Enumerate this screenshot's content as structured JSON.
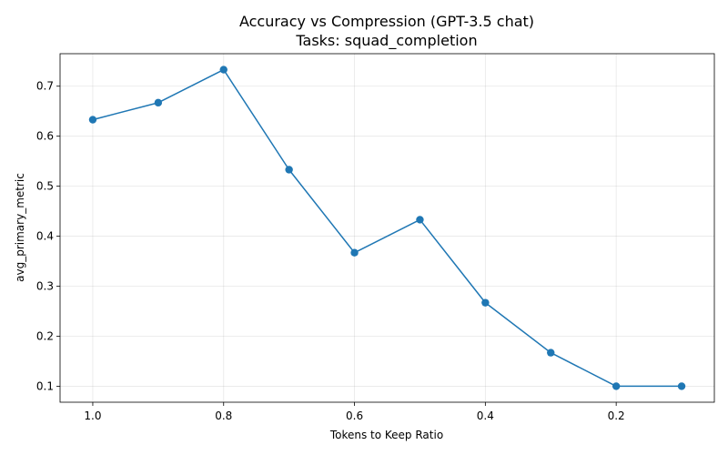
{
  "chart_data": {
    "type": "line",
    "title": "Accuracy vs Compression (GPT-3.5 chat)",
    "subtitle": "Tasks: squad_completion",
    "xlabel": "Tokens to Keep Ratio",
    "ylabel": "avg_primary_metric",
    "x_axis_reversed": true,
    "xlim": [
      1.05,
      0.05
    ],
    "ylim": [
      0.068,
      0.765
    ],
    "xticks": [
      1.0,
      0.8,
      0.6,
      0.4,
      0.2
    ],
    "xtick_labels": [
      "1.0",
      "0.8",
      "0.6",
      "0.4",
      "0.2"
    ],
    "yticks": [
      0.1,
      0.2,
      0.3,
      0.4,
      0.5,
      0.6,
      0.7
    ],
    "ytick_labels": [
      "0.1",
      "0.2",
      "0.3",
      "0.4",
      "0.5",
      "0.6",
      "0.7"
    ],
    "grid": true,
    "legend": "none",
    "series": [
      {
        "color": "#1f77b4",
        "marker": "circle",
        "x": [
          1.0,
          0.9,
          0.8,
          0.7,
          0.6,
          0.5,
          0.4,
          0.3,
          0.2,
          0.1
        ],
        "y": [
          0.633,
          0.667,
          0.733,
          0.533,
          0.367,
          0.433,
          0.267,
          0.167,
          0.1,
          0.1
        ]
      }
    ]
  }
}
